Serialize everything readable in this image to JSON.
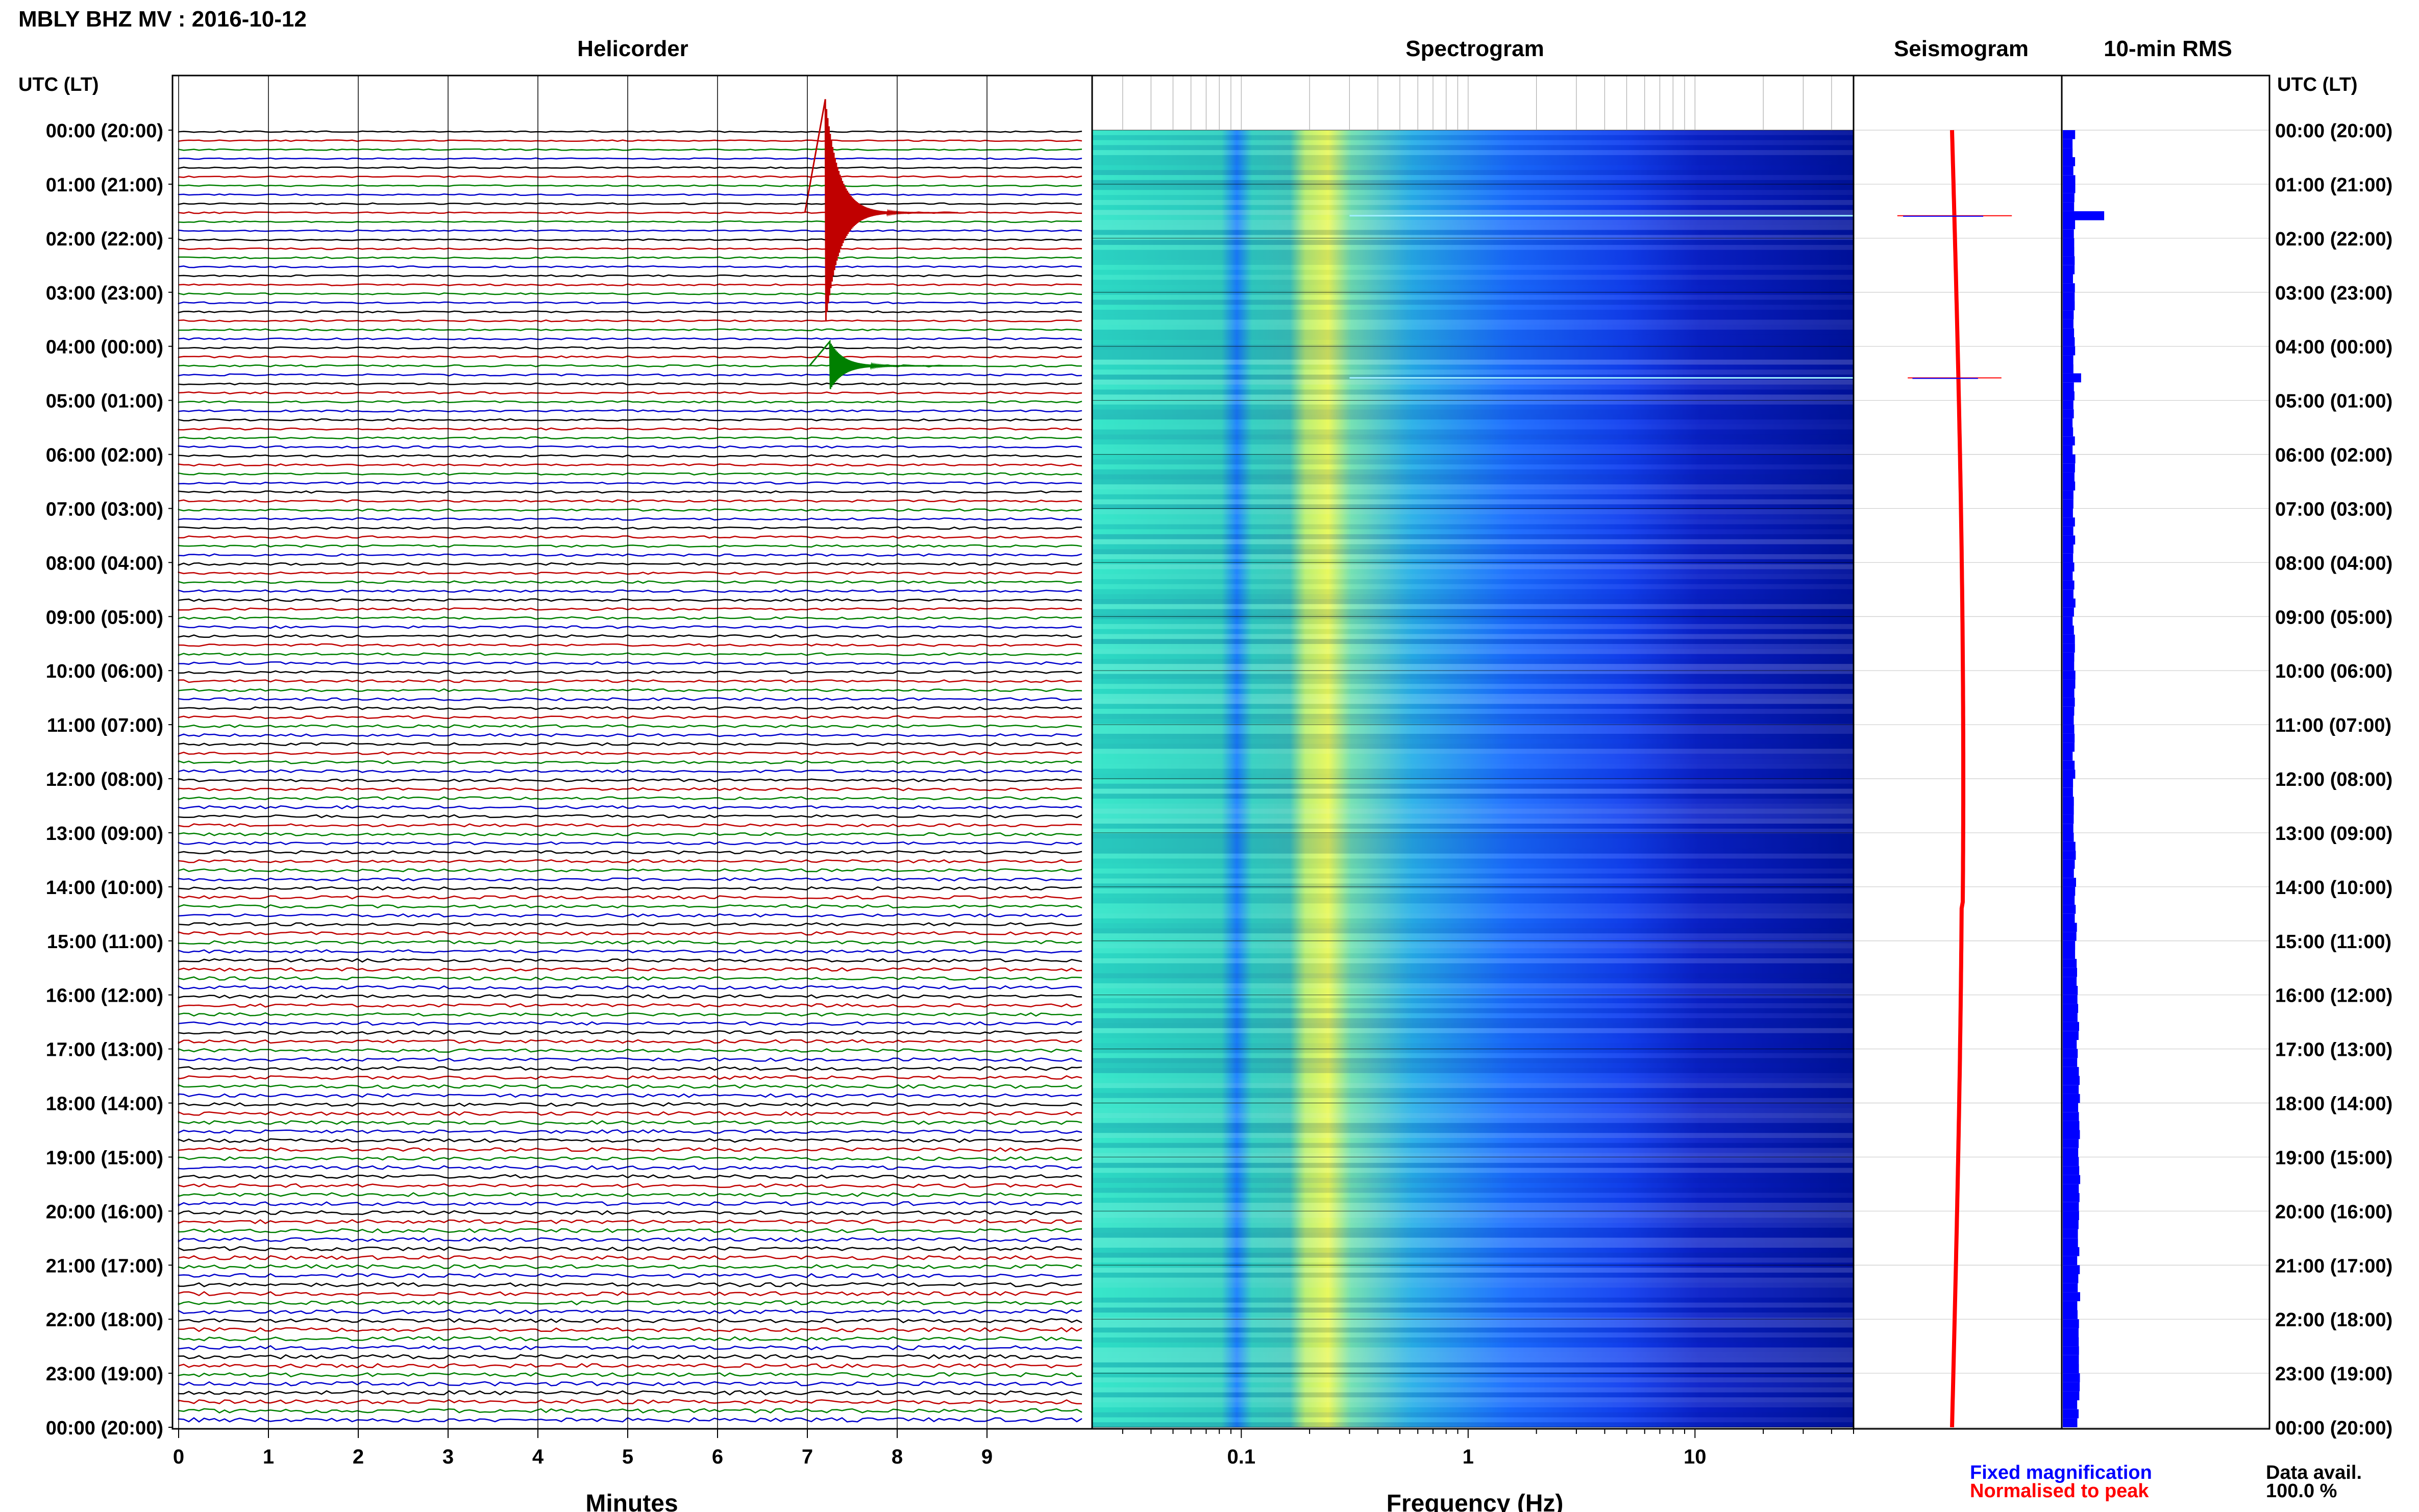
{
  "header": {
    "station_title": "MBLY BHZ MV : 2016-10-12"
  },
  "panels": {
    "helicorder_title": "Helicorder",
    "spectrogram_title": "Spectrogram",
    "seismogram_title": "Seismogram",
    "rms_title": "10-min RMS"
  },
  "axes": {
    "time_axis_label": "UTC (LT)",
    "helicorder_xlabel": "Minutes",
    "spectrogram_xlabel": "Frequency (Hz)"
  },
  "legend": {
    "fixed_magnification": "Fixed magnification",
    "normalised_to_peak": "Normalised to peak"
  },
  "data_availability": {
    "label": "Data avail.",
    "value": "100.0 %"
  },
  "colors": {
    "trace_black": "#000000",
    "trace_red": "#c00000",
    "trace_green": "#008000",
    "trace_blue": "#0000cc",
    "fixed_magnification": "#0000ff",
    "normalised_to_peak": "#ff0000",
    "rms_bar": "#0000ff",
    "spectrogram_low": "#00008b",
    "spectrogram_mid": "#1f6fff",
    "spectrogram_high": "#c8f060"
  },
  "chart_data": {
    "type": "heatmap",
    "time_ticks": [
      "00:00 (20:00)",
      "01:00 (21:00)",
      "02:00 (22:00)",
      "03:00 (23:00)",
      "04:00 (00:00)",
      "05:00 (01:00)",
      "06:00 (02:00)",
      "07:00 (03:00)",
      "08:00 (04:00)",
      "09:00 (05:00)",
      "10:00 (06:00)",
      "11:00 (07:00)",
      "12:00 (08:00)",
      "13:00 (09:00)",
      "14:00 (10:00)",
      "15:00 (11:00)",
      "16:00 (12:00)",
      "17:00 (13:00)",
      "18:00 (14:00)",
      "19:00 (15:00)",
      "20:00 (16:00)",
      "21:00 (17:00)",
      "22:00 (18:00)",
      "23:00 (19:00)",
      "00:00 (20:00)"
    ],
    "helicorder": {
      "xlabel": "Minutes",
      "xticks": [
        0,
        1,
        2,
        3,
        4,
        5,
        6,
        7,
        8,
        9
      ],
      "xlim": [
        0,
        10
      ],
      "lines_per_hour": 6,
      "trace_color_cycle": [
        "black",
        "red",
        "green",
        "blue"
      ],
      "events": [
        {
          "line_index": 9,
          "minute": 7.2,
          "amplitude": 14,
          "color": "red"
        },
        {
          "line_index": 26,
          "minute": 7.25,
          "amplitude": 3,
          "color": "green"
        }
      ]
    },
    "spectrogram": {
      "xlabel": "Frequency (Hz)",
      "xscale": "log",
      "xlim": [
        0.022,
        50
      ],
      "xticks": [
        0.1,
        1,
        10
      ],
      "peak_band_hz": [
        0.2,
        0.3
      ],
      "spike_times_utc": [
        "01:35",
        "04:35"
      ]
    },
    "seismogram": {
      "series": [
        {
          "name": "Fixed magnification"
        },
        {
          "name": "Normalised to peak"
        }
      ],
      "spikes": [
        {
          "time_utc": "01:35",
          "amplitude": 0.55
        },
        {
          "time_utc": "04:35",
          "amplitude": 0.45
        }
      ]
    },
    "rms": {
      "bins_per_hour": 6,
      "values": [
        0.12,
        0.12,
        0.12,
        0.12,
        0.12,
        0.12,
        0.12,
        0.12,
        0.12,
        0.12,
        0.12,
        0.12,
        0.12,
        0.12,
        0.12,
        0.12,
        0.12,
        0.12,
        0.12,
        0.12,
        0.12,
        0.12,
        0.12,
        0.12,
        0.12,
        0.12,
        0.12,
        0.12,
        0.12,
        0.12,
        0.12,
        0.12,
        0.12,
        0.12,
        0.12,
        0.12,
        0.12,
        0.12,
        0.12,
        0.12,
        0.12,
        0.12,
        0.12,
        0.12,
        0.12,
        0.12,
        0.12,
        0.12,
        0.12,
        0.12,
        0.12,
        0.12,
        0.12,
        0.12,
        0.12,
        0.12,
        0.12,
        0.12,
        0.12,
        0.12,
        0.12,
        0.12,
        0.12,
        0.12,
        0.12,
        0.12,
        0.12,
        0.12,
        0.12,
        0.12,
        0.12,
        0.12,
        0.12,
        0.12,
        0.12,
        0.12,
        0.12,
        0.12,
        0.12,
        0.12,
        0.13,
        0.13,
        0.13,
        0.13,
        0.13,
        0.13,
        0.14,
        0.14,
        0.14,
        0.14,
        0.14,
        0.14,
        0.15,
        0.15,
        0.15,
        0.15,
        0.15,
        0.15,
        0.16,
        0.16,
        0.16,
        0.16,
        0.16,
        0.17,
        0.17,
        0.17,
        0.17,
        0.17,
        0.17,
        0.17,
        0.17,
        0.17,
        0.17,
        0.17,
        0.17,
        0.17,
        0.17,
        0.17,
        0.17,
        0.17,
        0.17,
        0.17,
        0.17,
        0.17,
        0.17,
        0.17,
        0.17,
        0.17,
        0.17,
        0.17,
        0.17,
        0.17,
        0.17,
        0.17,
        0.17,
        0.17,
        0.17,
        0.17,
        0.17,
        0.17,
        0.17,
        0.17,
        0.17,
        0.17
      ],
      "peaks": [
        {
          "bin_index": 9,
          "value": 0.45
        },
        {
          "bin_index": 27,
          "value": 0.2
        },
        {
          "bin_index": 106,
          "value": 0.18
        }
      ]
    }
  }
}
